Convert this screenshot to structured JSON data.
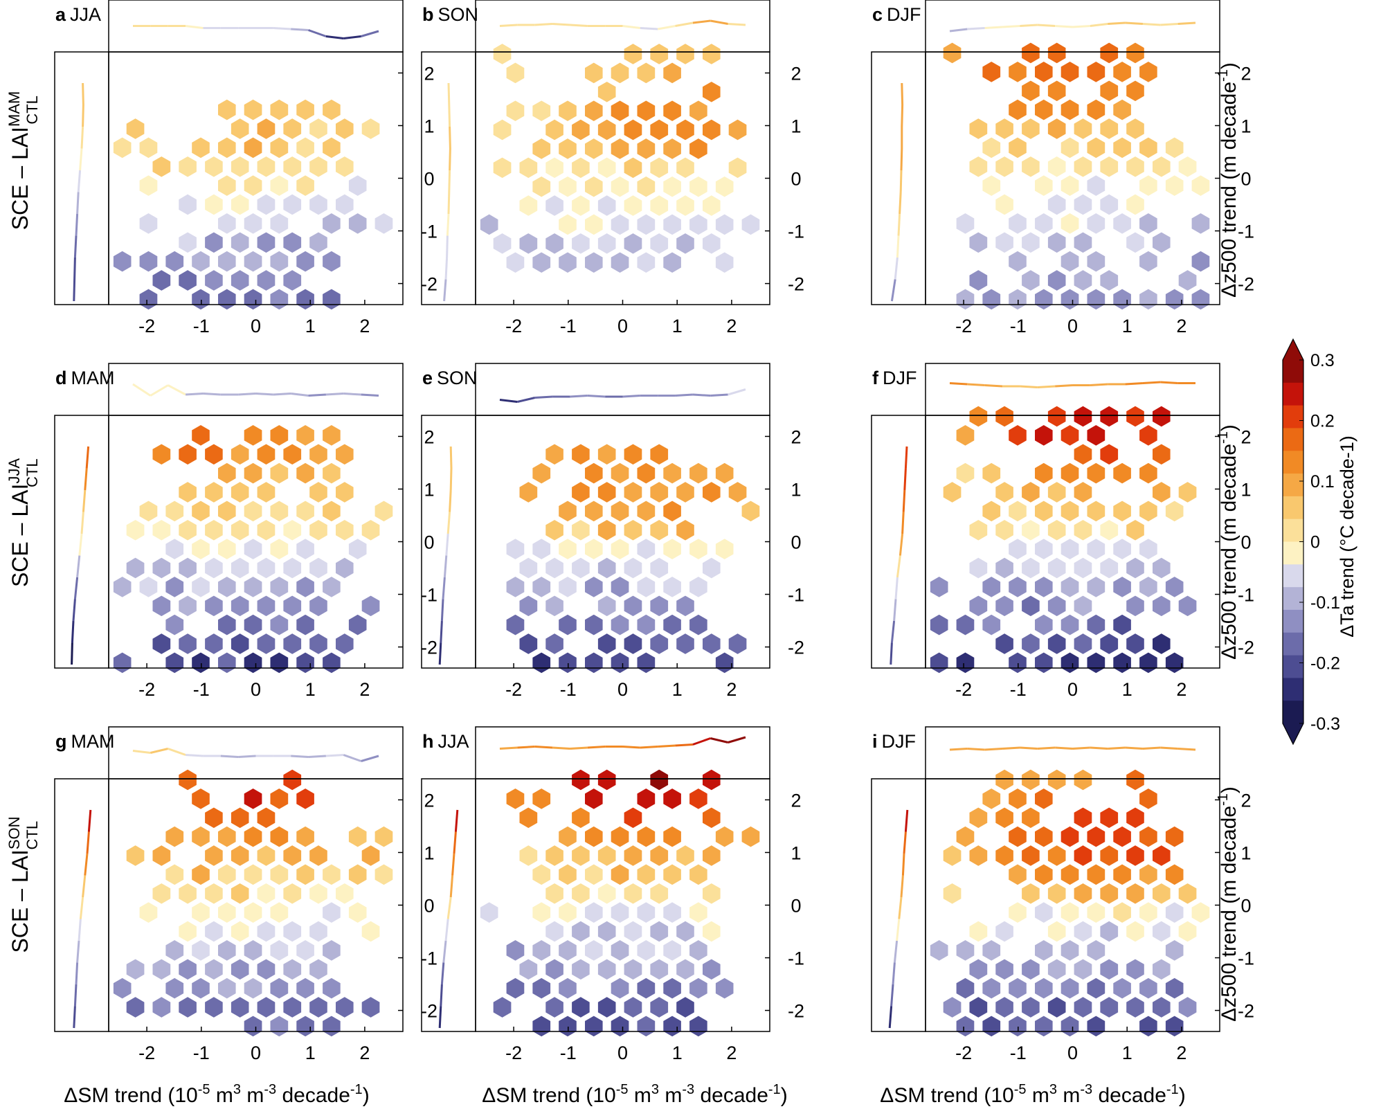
{
  "colorbar": {
    "title": "ΔTa trend (°C decade-1)",
    "tick_labels": [
      "0.3",
      "0.2",
      "0.1",
      "0",
      "-0.1",
      "-0.2",
      "-0.3"
    ],
    "ticks": [
      0.3,
      0.2,
      0.1,
      0,
      -0.1,
      -0.2,
      -0.3
    ],
    "range": [
      -0.3,
      0.3
    ],
    "colors_low_to_high": [
      "#1b1b52",
      "#2e2e73",
      "#4d4d92",
      "#6c6caa",
      "#8f8fc2",
      "#b3b3d6",
      "#d9d9ec",
      "#fdf2c3",
      "#fbe09a",
      "#f9c86e",
      "#f5a845",
      "#f18a25",
      "#eb6a14",
      "#e23d0c",
      "#c4130a",
      "#8f0b08"
    ]
  },
  "rows": [
    {
      "ylabel_main": "SCE – LAI",
      "ylabel_sup": "MAM",
      "ylabel_sub": "CTL"
    },
    {
      "ylabel_main": "SCE – LAI",
      "ylabel_sup": "JJA",
      "ylabel_sub": "CTL"
    },
    {
      "ylabel_main": "SCE – LAI",
      "ylabel_sup": "SON",
      "ylabel_sub": "CTL"
    }
  ],
  "right_axis_label": {
    "main": "Δz500 trend (m decade",
    "sup": "-1",
    "end": ")"
  },
  "bottom_axis_label": {
    "a": "ΔSM trend (10",
    "sup1": "-5",
    "b": " m",
    "sup2": "3",
    "c": " m",
    "sup3": "-3",
    "d": " decade",
    "sup4": "-1",
    "e": ")"
  },
  "chart_data": [
    {
      "panel": "a",
      "season": "JJA",
      "type": "heatmap",
      "xlabel": "ΔSM trend",
      "ylabel": "Δz500 trend",
      "xlim": [
        -2.7,
        2.7
      ],
      "ylim": [
        -2.4,
        2.4
      ],
      "xticks": [
        -2,
        -1,
        0,
        1,
        2
      ],
      "yticks": [
        -2,
        -1,
        0,
        1,
        2
      ],
      "x_tick_labels": [
        "-2",
        "-1",
        "0",
        "1",
        "2"
      ],
      "y_tick_labels": [
        "-2",
        "-1",
        "0",
        "1",
        "2"
      ],
      "seed": 11,
      "warm_center": [
        -0.5,
        1.0
      ],
      "warm_strength": 0.06,
      "cool_strength": 0.16,
      "min_row": -2.3,
      "max_row": 1.3,
      "x_spread": 2.6,
      "top_marginal": [
        0,
        0,
        0,
        0,
        -0.02,
        -0.02,
        -0.02,
        -0.02,
        -0.02,
        -0.03,
        -0.04,
        -0.1,
        -0.12,
        -0.1,
        -0.05
      ],
      "left_marginal": [
        -0.14,
        -0.13,
        -0.12,
        -0.1,
        -0.08,
        -0.06,
        -0.03,
        0,
        0.02,
        0.03,
        0.02
      ]
    },
    {
      "panel": "b",
      "season": "SON",
      "type": "heatmap",
      "xlabel": "ΔSM trend",
      "ylabel": "Δz500 trend",
      "xlim": [
        -2.7,
        2.7
      ],
      "ylim": [
        -2.4,
        2.4
      ],
      "xticks": [
        -2,
        -1,
        0,
        1,
        2
      ],
      "yticks": [
        -2,
        -1,
        0,
        1,
        2
      ],
      "x_tick_labels": [
        "-2",
        "-1",
        "0",
        "1",
        "2"
      ],
      "y_tick_labels": [
        "-2",
        "-1",
        "0",
        "1",
        "2"
      ],
      "seed": 23,
      "warm_center": [
        1.2,
        1.1
      ],
      "warm_strength": 0.12,
      "cool_strength": 0.12,
      "min_row": -1.6,
      "max_row": 2.4,
      "x_spread": 2.6,
      "top_marginal": [
        0,
        0.01,
        0.01,
        0.02,
        0.01,
        0,
        0,
        0,
        -0.02,
        -0.03,
        0,
        0.03,
        0.05,
        0.02,
        0.01
      ],
      "left_marginal": [
        -0.08,
        -0.05,
        -0.03,
        -0.02,
        0,
        0.01,
        0.02,
        0.03,
        0.02,
        0.01,
        0
      ]
    },
    {
      "panel": "c",
      "season": "DJF",
      "type": "heatmap",
      "xlabel": "ΔSM trend",
      "ylabel": "Δz500 trend",
      "xlim": [
        -2.7,
        2.7
      ],
      "ylim": [
        -2.4,
        2.4
      ],
      "xticks": [
        -2,
        -1,
        0,
        1,
        2
      ],
      "yticks": [
        -2,
        -1,
        0,
        1,
        2
      ],
      "x_tick_labels": [
        "-2",
        "-1",
        "0",
        "1",
        "2"
      ],
      "y_tick_labels": [
        "-2",
        "-1",
        "0",
        "1",
        "2"
      ],
      "seed": 37,
      "warm_center": [
        -0.2,
        2.2
      ],
      "warm_strength": 0.16,
      "cool_strength": 0.13,
      "min_row": -2.3,
      "max_row": 2.4,
      "x_spread": 2.6,
      "top_marginal": [
        -0.05,
        -0.03,
        -0.02,
        -0.01,
        0,
        0.01,
        0,
        -0.01,
        0,
        0.02,
        0.03,
        0.02,
        0.01,
        0.02,
        0.03
      ],
      "left_marginal": [
        -0.12,
        -0.06,
        -0.02,
        0,
        0.02,
        0.04,
        0.05,
        0.06,
        0.06,
        0.07,
        0.06
      ]
    },
    {
      "panel": "d",
      "season": "MAM",
      "type": "heatmap",
      "xlabel": "ΔSM trend",
      "ylabel": "Δz500 trend",
      "xlim": [
        -2.7,
        2.7
      ],
      "ylim": [
        -2.4,
        2.4
      ],
      "xticks": [
        -2,
        -1,
        0,
        1,
        2
      ],
      "yticks": [
        -2,
        -1,
        0,
        1,
        2
      ],
      "x_tick_labels": [
        "-2",
        "-1",
        "0",
        "1",
        "2"
      ],
      "y_tick_labels": [
        "-2",
        "-1",
        "0",
        "1",
        "2"
      ],
      "seed": 41,
      "warm_center": [
        -0.7,
        2.3
      ],
      "warm_strength": 0.15,
      "cool_strength": 0.2,
      "min_row": -2.3,
      "max_row": 2.3,
      "x_spread": 2.6,
      "top_marginal": [
        0.05,
        -0.06,
        0.04,
        -0.05,
        -0.04,
        -0.05,
        -0.05,
        -0.04,
        -0.05,
        -0.04,
        -0.06,
        -0.05,
        -0.04,
        -0.05,
        -0.06
      ],
      "left_marginal": [
        -0.18,
        -0.17,
        -0.15,
        -0.12,
        -0.08,
        -0.04,
        0,
        0.03,
        0.06,
        0.09,
        0.12
      ]
    },
    {
      "panel": "e",
      "season": "SON",
      "type": "heatmap",
      "xlabel": "ΔSM trend",
      "ylabel": "Δz500 trend",
      "xlim": [
        -2.7,
        2.7
      ],
      "ylim": [
        -2.4,
        2.4
      ],
      "xticks": [
        -2,
        -1,
        0,
        1,
        2
      ],
      "yticks": [
        -2,
        -1,
        0,
        1,
        2
      ],
      "x_tick_labels": [
        "-2",
        "-1",
        "0",
        "1",
        "2"
      ],
      "y_tick_labels": [
        "-2",
        "-1",
        "0",
        "1",
        "2"
      ],
      "seed": 53,
      "warm_center": [
        0.2,
        1.2
      ],
      "warm_strength": 0.11,
      "cool_strength": 0.2,
      "min_row": -2.3,
      "max_row": 1.8,
      "x_spread": 2.4,
      "top_marginal": [
        -0.1,
        -0.12,
        -0.08,
        -0.07,
        -0.07,
        -0.06,
        -0.07,
        -0.07,
        -0.06,
        -0.06,
        -0.06,
        -0.05,
        -0.06,
        -0.05,
        0
      ],
      "left_marginal": [
        -0.16,
        -0.14,
        -0.12,
        -0.1,
        -0.07,
        -0.04,
        -0.01,
        0.02,
        0.04,
        0.05,
        0.04
      ]
    },
    {
      "panel": "f",
      "season": "DJF",
      "type": "heatmap",
      "xlabel": "ΔSM trend",
      "ylabel": "Δz500 trend",
      "xlim": [
        -2.7,
        2.7
      ],
      "ylim": [
        -2.4,
        2.4
      ],
      "xticks": [
        -2,
        -1,
        0,
        1,
        2
      ],
      "yticks": [
        -2,
        -1,
        0,
        1,
        2
      ],
      "x_tick_labels": [
        "-2",
        "-1",
        "0",
        "1",
        "2"
      ],
      "y_tick_labels": [
        "-2",
        "-1",
        "0",
        "1",
        "2"
      ],
      "seed": 67,
      "warm_center": [
        0.6,
        2.3
      ],
      "warm_strength": 0.22,
      "cool_strength": 0.22,
      "min_row": -2.3,
      "max_row": 2.4,
      "x_spread": 2.6,
      "top_marginal": [
        0.06,
        0.05,
        0.04,
        0.03,
        0.03,
        0.02,
        0.03,
        0.04,
        0.04,
        0.05,
        0.05,
        0.06,
        0.07,
        0.06,
        0.06
      ],
      "left_marginal": [
        -0.14,
        -0.12,
        -0.08,
        -0.05,
        -0.02,
        0.03,
        0.07,
        0.09,
        0.11,
        0.13,
        0.15
      ]
    },
    {
      "panel": "g",
      "season": "MAM",
      "type": "heatmap",
      "xlabel": "ΔSM trend",
      "ylabel": "Δz500 trend",
      "xlim": [
        -2.7,
        2.7
      ],
      "ylim": [
        -2.4,
        2.4
      ],
      "xticks": [
        -2,
        -1,
        0,
        1,
        2
      ],
      "yticks": [
        -2,
        -1,
        0,
        1,
        2
      ],
      "x_tick_labels": [
        "-2",
        "-1",
        "0",
        "1",
        "2"
      ],
      "y_tick_labels": [
        "-2",
        "-1",
        "0",
        "1",
        "2"
      ],
      "seed": 71,
      "warm_center": [
        0.1,
        2.2
      ],
      "warm_strength": 0.2,
      "cool_strength": 0.17,
      "min_row": -2.3,
      "max_row": 2.4,
      "x_spread": 2.6,
      "top_marginal": [
        0.02,
        0,
        0.04,
        -0.02,
        -0.03,
        -0.03,
        -0.04,
        -0.03,
        -0.03,
        -0.03,
        -0.04,
        -0.03,
        -0.02,
        -0.08,
        -0.03
      ],
      "left_marginal": [
        -0.14,
        -0.12,
        -0.1,
        -0.08,
        -0.05,
        -0.02,
        0.02,
        0.06,
        0.1,
        0.13,
        0.16
      ]
    },
    {
      "panel": "h",
      "season": "JJA",
      "type": "heatmap",
      "xlabel": "ΔSM trend",
      "ylabel": "Δz500 trend",
      "xlim": [
        -2.7,
        2.7
      ],
      "ylim": [
        -2.4,
        2.4
      ],
      "xticks": [
        -2,
        -1,
        0,
        1,
        2
      ],
      "yticks": [
        -2,
        -1,
        0,
        1,
        2
      ],
      "x_tick_labels": [
        "-2",
        "-1",
        "0",
        "1",
        "2"
      ],
      "y_tick_labels": [
        "-2",
        "-1",
        "0",
        "1",
        "2"
      ],
      "seed": 83,
      "warm_center": [
        0.5,
        2.4
      ],
      "warm_strength": 0.24,
      "cool_strength": 0.19,
      "min_row": -2.3,
      "max_row": 2.4,
      "x_spread": 2.6,
      "top_marginal": [
        0.04,
        0.05,
        0.06,
        0.05,
        0.04,
        0.05,
        0.06,
        0.06,
        0.05,
        0.06,
        0.07,
        0.08,
        0.14,
        0.1,
        0.15
      ],
      "left_marginal": [
        -0.16,
        -0.14,
        -0.12,
        -0.09,
        -0.05,
        -0.01,
        0.04,
        0.07,
        0.1,
        0.13,
        0.16
      ]
    },
    {
      "panel": "i",
      "season": "DJF",
      "type": "heatmap",
      "xlabel": "ΔSM trend",
      "ylabel": "Δz500 trend",
      "xlim": [
        -2.7,
        2.7
      ],
      "ylim": [
        -2.4,
        2.4
      ],
      "xticks": [
        -2,
        -1,
        0,
        1,
        2
      ],
      "yticks": [
        -2,
        -1,
        0,
        1,
        2
      ],
      "x_tick_labels": [
        "-2",
        "-1",
        "0",
        "1",
        "2"
      ],
      "y_tick_labels": [
        "-2",
        "-1",
        "0",
        "1",
        "2"
      ],
      "seed": 97,
      "warm_center": [
        0.6,
        1.4
      ],
      "warm_strength": 0.19,
      "cool_strength": 0.19,
      "min_row": -2.3,
      "max_row": 2.4,
      "x_spread": 2.5,
      "top_marginal": [
        0.03,
        0.04,
        0.03,
        0.04,
        0.05,
        0.04,
        0.05,
        0.04,
        0.05,
        0.04,
        0.05,
        0.04,
        0.05,
        0.04,
        0.03
      ],
      "left_marginal": [
        -0.16,
        -0.13,
        -0.1,
        -0.07,
        -0.03,
        0.01,
        0.05,
        0.08,
        0.1,
        0.13,
        0.16
      ]
    }
  ]
}
